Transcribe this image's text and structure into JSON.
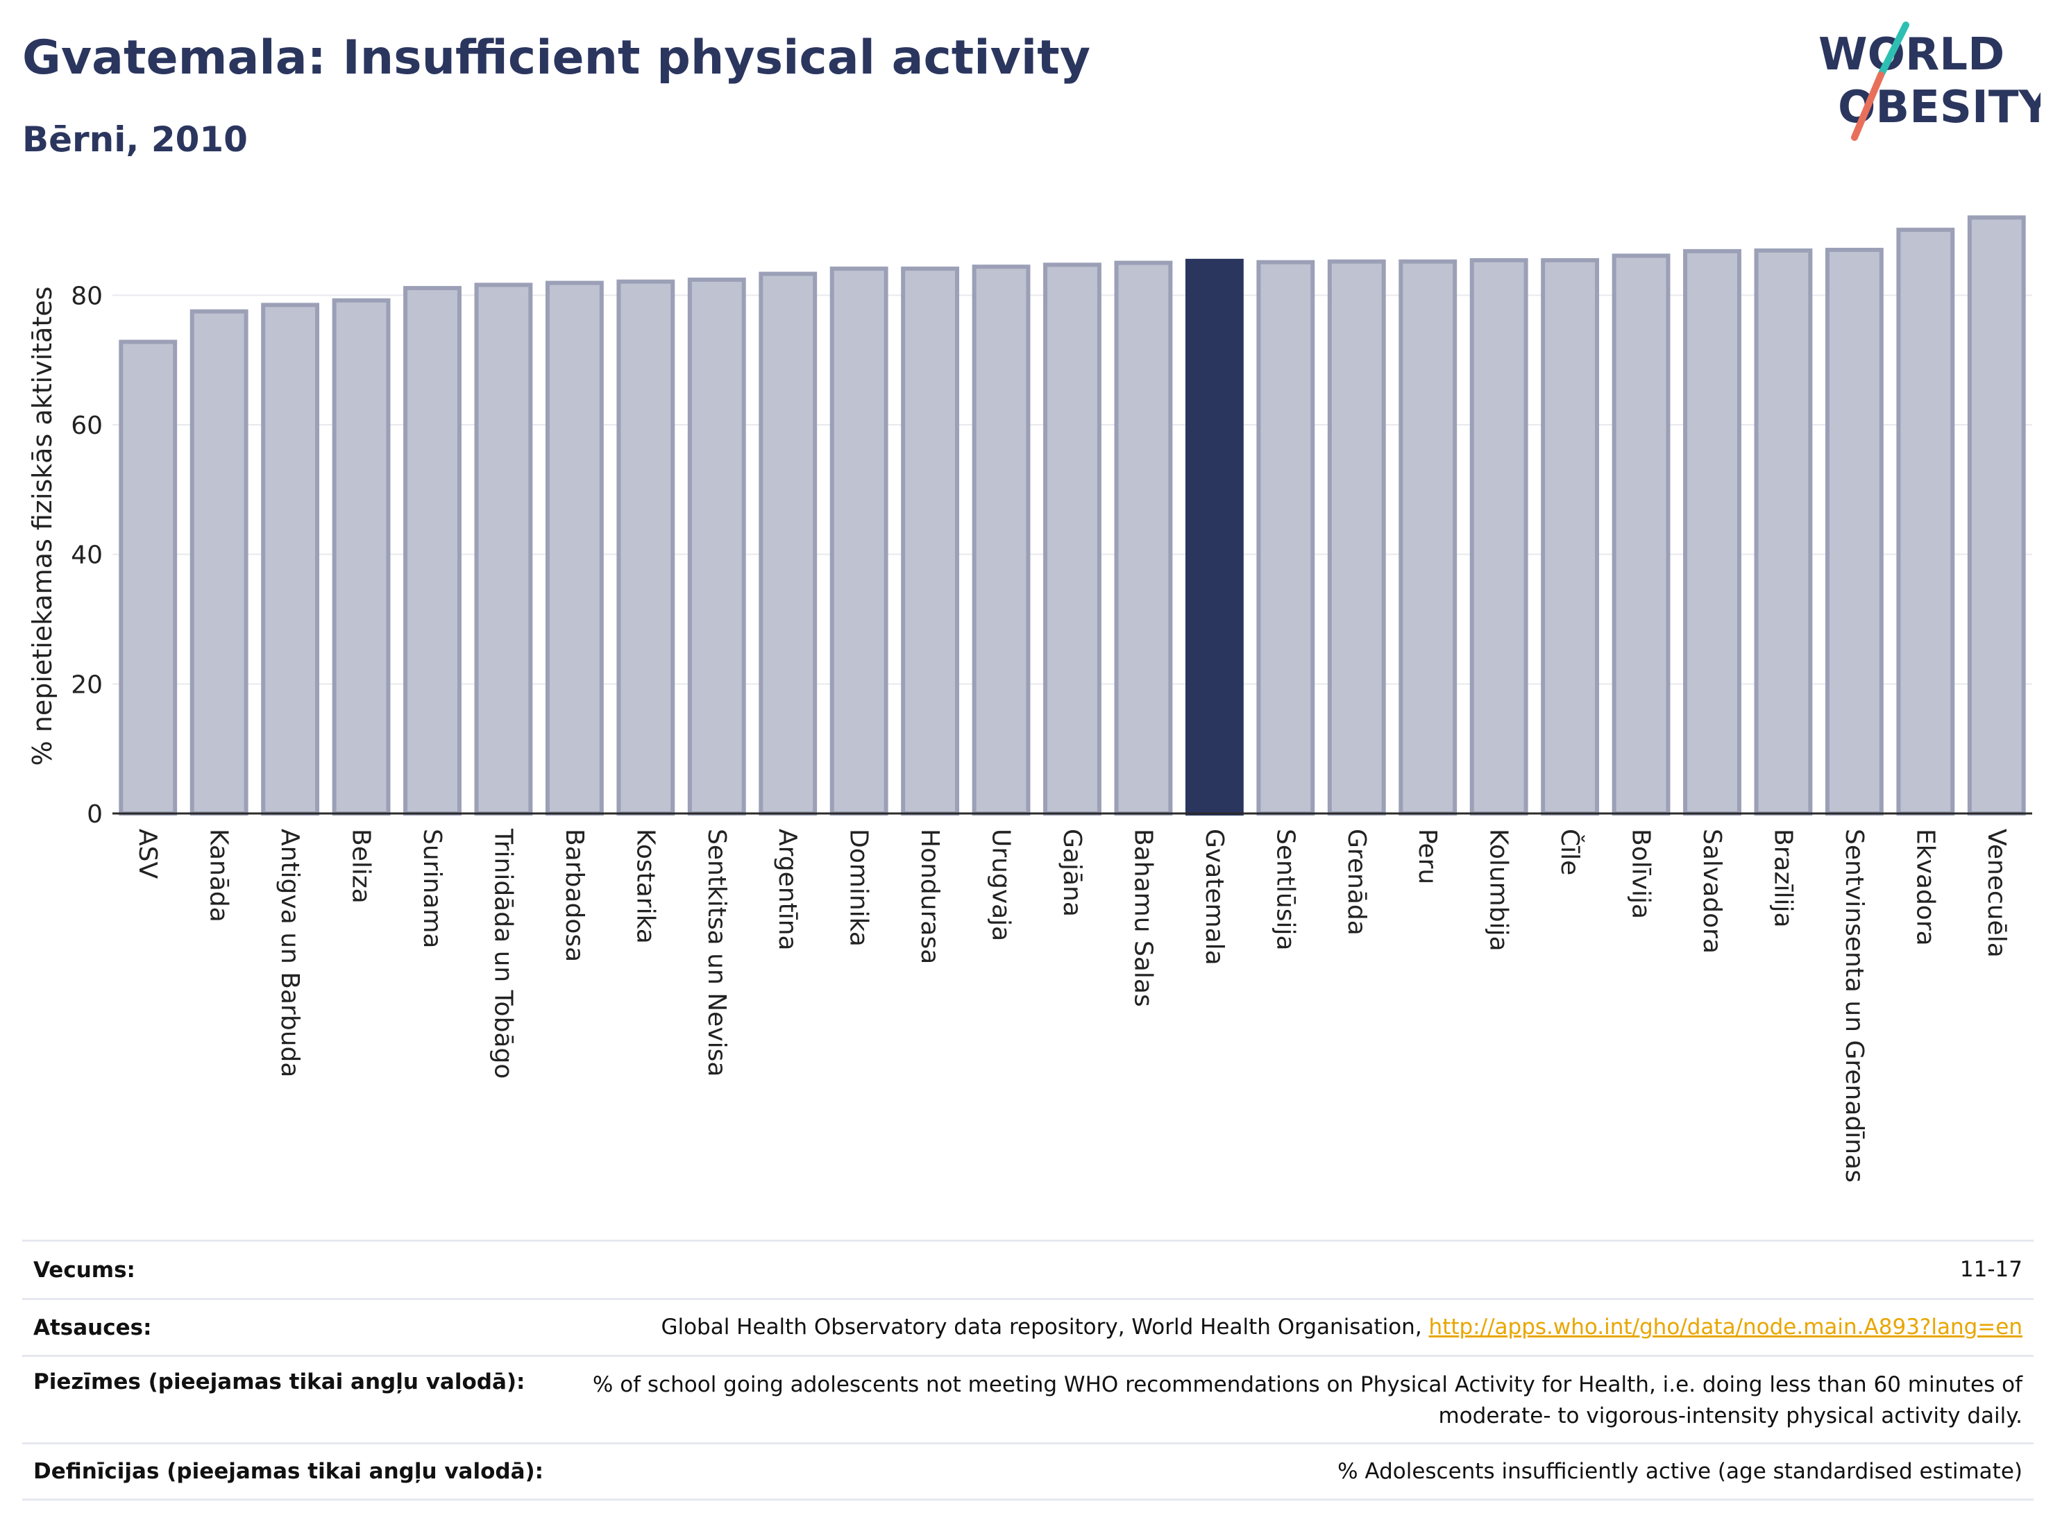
{
  "header": {
    "title": "Gvatemala: Insufficient physical activity",
    "subtitle": "Bērni, 2010"
  },
  "logo": {
    "line1": "WORLD",
    "line2": "OBESITY",
    "accent_colors": [
      "#2ebfb3",
      "#e8705b"
    ]
  },
  "colors": {
    "highlight": "#2b365f",
    "bar": "#bfc2d0",
    "bar_border": "#9ba0b7",
    "text_dark": "#2b365f"
  },
  "chart_data": {
    "type": "bar",
    "ylabel": "% nepietiekamas fiziskās aktivitātes",
    "xlabel": "",
    "ylim": [
      0,
      93
    ],
    "yticks": [
      0,
      20,
      40,
      60,
      80
    ],
    "grid": true,
    "highlight": "Gvatemala",
    "categories": [
      "ASV",
      "Kanāda",
      "Antigva un Barbuda",
      "Beliza",
      "Surinama",
      "Trinidāda un Tobāgo",
      "Barbadosa",
      "Kostarika",
      "Sentkitsa un Nevisa",
      "Argentīna",
      "Dominika",
      "Hondurasa",
      "Urugvaja",
      "Gajāna",
      "Bahamu Salas",
      "Gvatemala",
      "Sentlūsija",
      "Grenāda",
      "Peru",
      "Kolumbija",
      "Čīle",
      "Bolīvija",
      "Salvadora",
      "Brazīlija",
      "Sentvinsenta un Grenadīnas",
      "Ekvadora",
      "Venecuēla"
    ],
    "values": [
      72.8,
      77.5,
      78.5,
      79.2,
      81.1,
      81.6,
      81.9,
      82.1,
      82.4,
      83.3,
      84.1,
      84.1,
      84.4,
      84.7,
      85.0,
      85.3,
      85.1,
      85.2,
      85.2,
      85.4,
      85.4,
      86.1,
      86.8,
      86.9,
      87.0,
      90.1,
      92.0
    ]
  },
  "meta": {
    "age": {
      "label": "Vecums:",
      "value": "11-17"
    },
    "sources": {
      "label": "Atsauces:",
      "value": "Global Health Observatory data repository, World Health Organisation, ",
      "link": "http://apps.who.int/gho/data/node.main.A893?lang=en"
    },
    "notes": {
      "label": "Piezīmes (pieejamas tikai angļu valodā):",
      "value_line1": "% of school going adolescents not meeting WHO recommendations on Physical Activity for Health, i.e. doing less than 60 minutes of",
      "value_line2": "moderate- to vigorous-intensity physical activity daily."
    },
    "definitions": {
      "label": "Definīcijas (pieejamas tikai angļu valodā):",
      "value": "% Adolescents insufficiently active (age standardised estimate)"
    }
  }
}
